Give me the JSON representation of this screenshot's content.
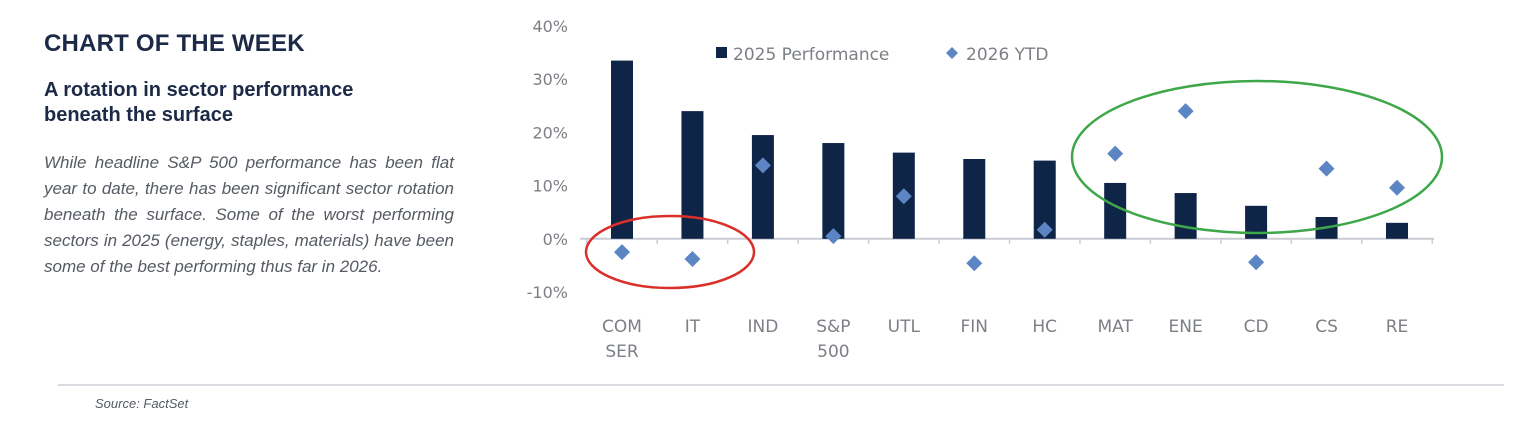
{
  "header": {
    "kicker": "CHART OF THE WEEK",
    "headline_line1": "A rotation in sector performance",
    "headline_line2": "beneath the surface",
    "body": "While headline S&P 500 performance has been flat year to date, there has been significant sector rotation beneath the surface. Some of the worst performing sectors in 2025 (energy, staples, materials) have been some of the best performing thus far in 2026."
  },
  "footer": {
    "source": "Source: FactSet"
  },
  "colors": {
    "bar": "#0f2548",
    "diamond": "#5b86c3",
    "red_circle": "#d9302a",
    "green_circle": "#3ea74a",
    "axis_text": "#7c7f86"
  },
  "chart_data": {
    "type": "bar",
    "categories": [
      [
        "COM",
        "SER"
      ],
      [
        "IT"
      ],
      [
        "IND"
      ],
      [
        "S&P",
        "500"
      ],
      [
        "UTL"
      ],
      [
        "FIN"
      ],
      [
        "HC"
      ],
      [
        "MAT"
      ],
      [
        "ENE"
      ],
      [
        "CD"
      ],
      [
        "CS"
      ],
      [
        "RE"
      ]
    ],
    "series": [
      {
        "name": "2025 Performance",
        "kind": "bar",
        "values": [
          33.5,
          24,
          19.5,
          18,
          16.2,
          15,
          14.7,
          10.5,
          8.6,
          6.2,
          4.1,
          3.0
        ]
      },
      {
        "name": "2026 YTD",
        "kind": "diamond",
        "values": [
          -2.5,
          -3.8,
          13.8,
          0.5,
          8.0,
          -4.6,
          1.7,
          16.0,
          24.0,
          -4.4,
          13.2,
          9.6
        ]
      }
    ],
    "ylim": [
      -10,
      40
    ],
    "yticks": [
      -10,
      0,
      10,
      20,
      30,
      40
    ],
    "yticklabels": [
      "-10%",
      "0%",
      "10%",
      "20%",
      "30%",
      "40%"
    ],
    "legend_position": "top",
    "grid": false,
    "annotations": [
      {
        "shape": "ellipse",
        "color": "red",
        "encloses": [
          "COM SER",
          "IT"
        ]
      },
      {
        "shape": "ellipse",
        "color": "green",
        "encloses": [
          "MAT",
          "ENE",
          "CD",
          "CS",
          "RE"
        ]
      }
    ]
  }
}
